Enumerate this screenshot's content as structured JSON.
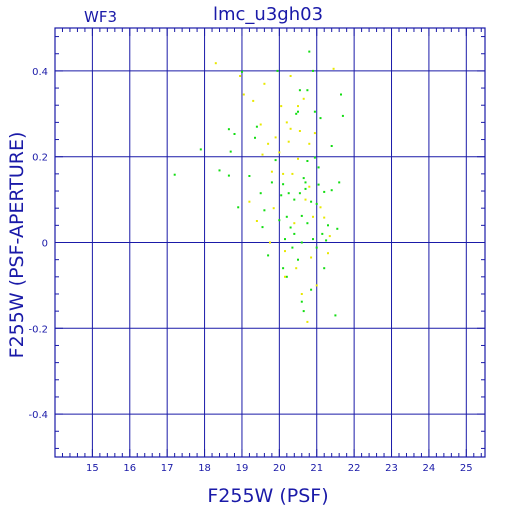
{
  "header": {
    "left_label": "WF3",
    "title": "lmc_u3gh03"
  },
  "colors": {
    "axis": "#1a1aa8",
    "grid": "#1a1aa8",
    "text": "#1a1aa8",
    "series_green": "#11dd11",
    "series_yellow": "#e8e800",
    "background": "#ffffff"
  },
  "chart_data": {
    "type": "scatter",
    "title": "lmc_u3gh03",
    "xlabel": "F255W (PSF)",
    "ylabel": "F255W (PSF-APERTURE)",
    "xlim": [
      14.0,
      25.5
    ],
    "ylim": [
      -0.5,
      0.5
    ],
    "grid": true,
    "x_major_ticks": [
      15,
      16,
      17,
      18,
      19,
      20,
      21,
      22,
      23,
      24,
      25
    ],
    "x_tick_labels": [
      "15",
      "16",
      "17",
      "18",
      "19",
      "20",
      "21",
      "22",
      "23",
      "24",
      "25"
    ],
    "y_major_ticks": [
      -0.4,
      -0.2,
      0,
      0.2,
      0.4
    ],
    "y_tick_labels": [
      "-0.4",
      "-0.2",
      "0",
      "0.2",
      "0.4"
    ],
    "series": [
      {
        "color": "#11dd11",
        "points": [
          [
            17.2,
            0.158
          ],
          [
            17.9,
            0.217
          ],
          [
            18.4,
            0.168
          ],
          [
            18.65,
            0.264
          ],
          [
            18.7,
            0.212
          ],
          [
            18.8,
            0.253
          ],
          [
            18.65,
            0.156
          ],
          [
            18.9,
            0.082
          ],
          [
            19.0,
            0.398
          ],
          [
            19.2,
            0.155
          ],
          [
            19.35,
            0.244
          ],
          [
            19.4,
            0.27
          ],
          [
            19.5,
            0.115
          ],
          [
            19.55,
            0.036
          ],
          [
            19.6,
            0.075
          ],
          [
            19.7,
            -0.03
          ],
          [
            19.8,
            0.14
          ],
          [
            19.9,
            0.192
          ],
          [
            19.95,
            0.4
          ],
          [
            20.0,
            0.052
          ],
          [
            20.05,
            0.11
          ],
          [
            20.1,
            -0.06
          ],
          [
            20.1,
            0.136
          ],
          [
            20.15,
            0.008
          ],
          [
            20.2,
            0.06
          ],
          [
            20.25,
            0.115
          ],
          [
            20.3,
            0.035
          ],
          [
            20.35,
            -0.012
          ],
          [
            20.4,
            0.1
          ],
          [
            20.45,
            0.3
          ],
          [
            20.5,
            -0.04
          ],
          [
            20.5,
            0.305
          ],
          [
            20.55,
            0.355
          ],
          [
            20.6,
            0.062
          ],
          [
            20.6,
            -0.138
          ],
          [
            20.65,
            0.15
          ],
          [
            20.7,
            0.14
          ],
          [
            20.7,
            0.125
          ],
          [
            20.75,
            0.355
          ],
          [
            20.75,
            0.045
          ],
          [
            20.8,
            0.445
          ],
          [
            20.85,
            0.095
          ],
          [
            20.9,
            0.4
          ],
          [
            20.9,
            0.008
          ],
          [
            20.95,
            0.198
          ],
          [
            21.0,
            0.09
          ],
          [
            21.0,
            -0.012
          ],
          [
            21.05,
            0.135
          ],
          [
            21.1,
            0.29
          ],
          [
            21.15,
            0.02
          ],
          [
            21.2,
            0.118
          ],
          [
            21.2,
            -0.06
          ],
          [
            21.25,
            0.005
          ],
          [
            21.3,
            0.04
          ],
          [
            21.4,
            0.225
          ],
          [
            21.4,
            0.122
          ],
          [
            21.5,
            -0.17
          ],
          [
            21.55,
            0.032
          ],
          [
            21.6,
            0.14
          ],
          [
            21.65,
            0.345
          ],
          [
            21.7,
            0.295
          ],
          [
            20.6,
            0.0
          ],
          [
            20.4,
            0.02
          ],
          [
            20.55,
            0.115
          ],
          [
            20.75,
            0.19
          ],
          [
            20.95,
            0.305
          ],
          [
            21.05,
            0.175
          ],
          [
            20.85,
            -0.11
          ],
          [
            20.65,
            -0.16
          ],
          [
            20.2,
            -0.08
          ]
        ]
      },
      {
        "color": "#e8e800",
        "points": [
          [
            18.3,
            0.418
          ],
          [
            18.95,
            0.388
          ],
          [
            19.05,
            0.345
          ],
          [
            19.2,
            0.095
          ],
          [
            19.3,
            0.33
          ],
          [
            19.4,
            0.05
          ],
          [
            19.5,
            0.275
          ],
          [
            19.6,
            0.37
          ],
          [
            19.7,
            0.23
          ],
          [
            19.8,
            0.165
          ],
          [
            19.85,
            0.08
          ],
          [
            19.9,
            0.245
          ],
          [
            20.0,
            0.21
          ],
          [
            20.05,
            0.318
          ],
          [
            20.1,
            0.16
          ],
          [
            20.15,
            -0.02
          ],
          [
            20.2,
            0.28
          ],
          [
            20.25,
            0.235
          ],
          [
            20.3,
            0.388
          ],
          [
            20.35,
            0.16
          ],
          [
            20.4,
            0.045
          ],
          [
            20.45,
            -0.06
          ],
          [
            20.5,
            0.195
          ],
          [
            20.55,
            0.26
          ],
          [
            20.6,
            -0.12
          ],
          [
            20.65,
            0.335
          ],
          [
            20.7,
            0.1
          ],
          [
            20.75,
            -0.185
          ],
          [
            20.8,
            0.13
          ],
          [
            20.85,
            -0.035
          ],
          [
            20.9,
            0.06
          ],
          [
            20.95,
            0.255
          ],
          [
            21.0,
            -0.1
          ],
          [
            21.1,
            0.082
          ],
          [
            21.2,
            0.058
          ],
          [
            21.3,
            -0.025
          ],
          [
            21.35,
            0.015
          ],
          [
            21.45,
            0.405
          ],
          [
            20.15,
            -0.08
          ],
          [
            20.3,
            0.265
          ],
          [
            19.55,
            0.205
          ],
          [
            19.75,
            0.0
          ],
          [
            20.5,
            0.318
          ],
          [
            20.8,
            0.23
          ]
        ]
      }
    ]
  }
}
